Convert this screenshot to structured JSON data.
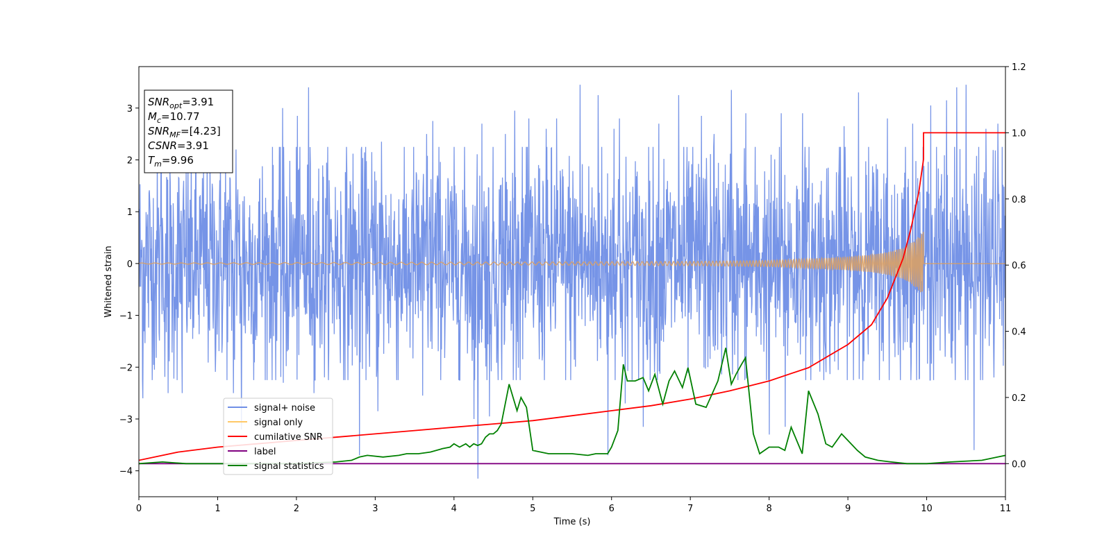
{
  "chart_data": {
    "type": "line",
    "xlabel": "Time (s)",
    "ylabel": "Whitened strain",
    "xlim": [
      0,
      11
    ],
    "ylim": [
      -4.5,
      3.8
    ],
    "y2lim": [
      -0.1,
      1.2
    ],
    "x_ticks": [
      0,
      1,
      2,
      3,
      4,
      5,
      6,
      7,
      8,
      9,
      10,
      11
    ],
    "y_ticks": [
      -4,
      -3,
      -2,
      -1,
      0,
      1,
      2,
      3
    ],
    "y2_ticks": [
      0.0,
      0.2,
      0.4,
      0.6,
      0.8,
      1.0,
      1.2
    ],
    "grid": false,
    "legend_position": "lower-left",
    "legend": [
      {
        "name": "signal+ noise",
        "color": "#6f8ee6"
      },
      {
        "name": "signal only",
        "color": "#ffc866"
      },
      {
        "name": "cumilative SNR",
        "color": "#ff0000"
      },
      {
        "name": "label",
        "color": "#800080"
      },
      {
        "name": "signal statistics",
        "color": "#008000"
      }
    ],
    "info_box": [
      {
        "base": "SNR",
        "sub": "opt",
        "value": "=3.91"
      },
      {
        "base": "M",
        "sub": "c",
        "value": "=10.77"
      },
      {
        "base": "SNR",
        "sub": "MF",
        "value": "=[4.23]"
      },
      {
        "base": "CSNR",
        "sub": "",
        "value": "=3.91"
      },
      {
        "base": "T",
        "sub": "m",
        "value": "=9.96"
      }
    ],
    "series": [
      {
        "name": "signal+ noise",
        "axis": "left",
        "style": "noise",
        "color": "#6f8ee6",
        "noise_band": [
          -2.0,
          2.0
        ],
        "spikes": [
          {
            "x": 0.05,
            "y": -2.6
          },
          {
            "x": 0.28,
            "y": 2.7
          },
          {
            "x": 0.37,
            "y": -2.5
          },
          {
            "x": 0.55,
            "y": -2.5
          },
          {
            "x": 1.1,
            "y": 2.0
          },
          {
            "x": 1.2,
            "y": -2.5
          },
          {
            "x": 1.23,
            "y": 2.2
          },
          {
            "x": 1.3,
            "y": -3.2
          },
          {
            "x": 1.83,
            "y": -2.3
          },
          {
            "x": 1.82,
            "y": 3.0
          },
          {
            "x": 2.01,
            "y": 2.85
          },
          {
            "x": 2.15,
            "y": 3.4
          },
          {
            "x": 2.22,
            "y": -2.5
          },
          {
            "x": 2.8,
            "y": -3.7
          },
          {
            "x": 2.82,
            "y": 2.2
          },
          {
            "x": 3.03,
            "y": -2.85
          },
          {
            "x": 3.08,
            "y": 2.35
          },
          {
            "x": 3.6,
            "y": -2.55
          },
          {
            "x": 3.65,
            "y": 2.5
          },
          {
            "x": 3.73,
            "y": 2.75
          },
          {
            "x": 4.25,
            "y": -3.0
          },
          {
            "x": 4.3,
            "y": -4.15
          },
          {
            "x": 4.35,
            "y": 2.7
          },
          {
            "x": 4.45,
            "y": -2.95
          },
          {
            "x": 4.65,
            "y": 2.5
          },
          {
            "x": 4.77,
            "y": 2.95
          },
          {
            "x": 4.95,
            "y": 2.8
          },
          {
            "x": 5.17,
            "y": 2.6
          },
          {
            "x": 5.3,
            "y": 2.8
          },
          {
            "x": 5.6,
            "y": 3.45
          },
          {
            "x": 5.83,
            "y": 3.25
          },
          {
            "x": 5.95,
            "y": -3.7
          },
          {
            "x": 6.03,
            "y": 2.6
          },
          {
            "x": 6.1,
            "y": 2.8
          },
          {
            "x": 6.17,
            "y": -2.7
          },
          {
            "x": 6.4,
            "y": -3.15
          },
          {
            "x": 6.6,
            "y": 2.7
          },
          {
            "x": 6.85,
            "y": 3.25
          },
          {
            "x": 7.14,
            "y": 2.85
          },
          {
            "x": 7.3,
            "y": 2.5
          },
          {
            "x": 7.52,
            "y": 3.35
          },
          {
            "x": 7.7,
            "y": 2.9
          },
          {
            "x": 8.0,
            "y": -3.3
          },
          {
            "x": 8.15,
            "y": 2.9
          },
          {
            "x": 8.2,
            "y": -3.15
          },
          {
            "x": 8.42,
            "y": 2.9
          },
          {
            "x": 8.95,
            "y": 2.65
          },
          {
            "x": 9.13,
            "y": 3.3
          },
          {
            "x": 9.5,
            "y": 2.8
          },
          {
            "x": 9.82,
            "y": 2.7
          },
          {
            "x": 10.05,
            "y": 3.05
          },
          {
            "x": 10.25,
            "y": 3.15
          },
          {
            "x": 10.38,
            "y": 3.4
          },
          {
            "x": 10.5,
            "y": 3.45
          },
          {
            "x": 10.6,
            "y": -3.6
          },
          {
            "x": 10.75,
            "y": 2.6
          },
          {
            "x": 10.9,
            "y": -3.5
          },
          {
            "x": 10.9,
            "y": 2.7
          }
        ]
      },
      {
        "name": "signal only",
        "axis": "left",
        "style": "chirp",
        "color": "#d9a066",
        "x": [
          0,
          5.0,
          7.0,
          8.0,
          8.5,
          9.0,
          9.3,
          9.5,
          9.7,
          9.85,
          9.95,
          9.96
        ],
        "amplitude": [
          0.01,
          0.03,
          0.04,
          0.06,
          0.09,
          0.13,
          0.17,
          0.22,
          0.3,
          0.45,
          0.6,
          0.65
        ]
      },
      {
        "name": "cumilative SNR",
        "axis": "right",
        "color": "#ff0000",
        "x": [
          0,
          0.5,
          1,
          1.5,
          2,
          2.5,
          3,
          3.5,
          4,
          4.5,
          5,
          5.5,
          6,
          6.5,
          7,
          7.5,
          8,
          8.5,
          9,
          9.3,
          9.5,
          9.7,
          9.8,
          9.9,
          9.96,
          9.96,
          11
        ],
        "values": [
          0.01,
          0.035,
          0.05,
          0.06,
          0.07,
          0.08,
          0.09,
          0.1,
          0.11,
          0.12,
          0.13,
          0.145,
          0.16,
          0.175,
          0.195,
          0.22,
          0.25,
          0.29,
          0.36,
          0.42,
          0.5,
          0.62,
          0.71,
          0.82,
          0.92,
          1.0,
          1.0
        ]
      },
      {
        "name": "label",
        "axis": "right",
        "color": "#800080",
        "x": [
          0,
          11
        ],
        "values": [
          0.0,
          0.0
        ]
      },
      {
        "name": "signal statistics",
        "axis": "right",
        "color": "#008000",
        "x": [
          0,
          0.3,
          0.6,
          1,
          1.5,
          2,
          2.5,
          2.7,
          2.8,
          2.9,
          3.1,
          3.3,
          3.4,
          3.55,
          3.7,
          3.85,
          3.95,
          4.0,
          4.07,
          4.15,
          4.2,
          4.25,
          4.3,
          4.35,
          4.4,
          4.45,
          4.5,
          4.55,
          4.6,
          4.7,
          4.8,
          4.85,
          4.92,
          5.0,
          5.2,
          5.5,
          5.7,
          5.8,
          5.95,
          6.0,
          6.08,
          6.15,
          6.2,
          6.3,
          6.4,
          6.47,
          6.55,
          6.65,
          6.73,
          6.8,
          6.9,
          6.97,
          7.07,
          7.2,
          7.35,
          7.45,
          7.52,
          7.58,
          7.65,
          7.7,
          7.8,
          7.88,
          8.0,
          8.12,
          8.2,
          8.28,
          8.42,
          8.5,
          8.62,
          8.72,
          8.8,
          8.92,
          9.0,
          9.12,
          9.22,
          9.38,
          9.55,
          9.75,
          10.0,
          10.3,
          10.7,
          10.9,
          11
        ],
        "values": [
          0.0,
          0.005,
          0.0,
          0.0,
          0.0,
          0.0,
          0.005,
          0.01,
          0.02,
          0.025,
          0.02,
          0.025,
          0.03,
          0.03,
          0.035,
          0.045,
          0.05,
          0.06,
          0.05,
          0.06,
          0.05,
          0.06,
          0.055,
          0.06,
          0.08,
          0.09,
          0.09,
          0.1,
          0.12,
          0.24,
          0.16,
          0.2,
          0.17,
          0.04,
          0.03,
          0.03,
          0.025,
          0.03,
          0.03,
          0.05,
          0.1,
          0.3,
          0.25,
          0.25,
          0.26,
          0.22,
          0.27,
          0.18,
          0.25,
          0.28,
          0.23,
          0.29,
          0.18,
          0.17,
          0.25,
          0.35,
          0.24,
          0.27,
          0.3,
          0.32,
          0.09,
          0.03,
          0.05,
          0.05,
          0.04,
          0.11,
          0.03,
          0.22,
          0.15,
          0.06,
          0.05,
          0.09,
          0.07,
          0.04,
          0.02,
          0.01,
          0.005,
          0.0,
          0.0,
          0.005,
          0.01,
          0.02,
          0.025
        ]
      }
    ]
  }
}
